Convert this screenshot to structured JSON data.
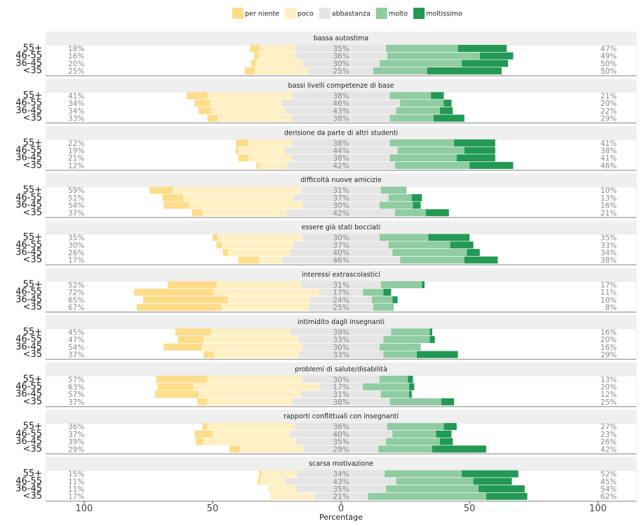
{
  "chart_data": {
    "type": "bar",
    "xlabel": "Percentage",
    "xlim": [
      -115,
      115
    ],
    "xticks": [
      {
        "value": -100,
        "label": "100"
      },
      {
        "value": -50,
        "label": "50"
      },
      0,
      50,
      100
    ],
    "legend": [
      {
        "name": "per niente",
        "color": "#fedd8a"
      },
      {
        "name": "poco",
        "color": "#fff0c3"
      },
      {
        "name": "abbastanza",
        "color": "#e5e5e5"
      },
      {
        "name": "molto",
        "color": "#8fcca1"
      },
      {
        "name": "moltissimo",
        "color": "#229954"
      }
    ],
    "panels": [
      {
        "title": "bassa autostima",
        "categories": [
          "55+",
          "46-55",
          "36-45",
          "<35"
        ],
        "values": [
          [
            4,
            2,
            2,
            4
          ],
          [
            14,
            14,
            18,
            21
          ],
          [
            35,
            36,
            30,
            25
          ],
          [
            28,
            36,
            32,
            21
          ],
          [
            19,
            13,
            18,
            29
          ]
        ],
        "left_labels": [
          "18%",
          "16%",
          "20%",
          "25%"
        ],
        "mid_labels": [
          "35%",
          "36%",
          "30%",
          "25%"
        ],
        "right_labels": [
          "47%",
          "49%",
          "50%",
          "50%"
        ]
      },
      {
        "title": "bassi livelli competenze di base",
        "categories": [
          "55+",
          "46-55",
          "36-45",
          "<35"
        ],
        "values": [
          [
            8,
            6,
            5,
            4
          ],
          [
            33,
            28,
            29,
            29
          ],
          [
            38,
            46,
            43,
            38
          ],
          [
            16,
            17,
            17,
            17
          ],
          [
            5,
            3,
            5,
            12
          ]
        ],
        "left_labels": [
          "41%",
          "34%",
          "34%",
          "33%"
        ],
        "mid_labels": [
          "38%",
          "46%",
          "43%",
          "38%"
        ],
        "right_labels": [
          "21%",
          "20%",
          "22%",
          "29%"
        ]
      },
      {
        "title": "derisione da parte di altri studenti",
        "categories": [
          "55+",
          "46-55",
          "36-45",
          "<35"
        ],
        "values": [
          [
            5,
            1,
            4,
            1
          ],
          [
            17,
            18,
            17,
            11
          ],
          [
            38,
            44,
            38,
            42
          ],
          [
            25,
            26,
            26,
            29
          ],
          [
            16,
            12,
            15,
            17
          ]
        ],
        "left_labels": [
          "22%",
          "19%",
          "21%",
          "12%"
        ],
        "mid_labels": [
          "38%",
          "44%",
          "38%",
          "42%"
        ],
        "right_labels": [
          "41%",
          "38%",
          "41%",
          "46%"
        ]
      },
      {
        "title": "difficoltà nuove amicizie",
        "categories": [
          "55+",
          "46-55",
          "36-45",
          "<35"
        ],
        "values": [
          [
            9,
            8,
            10,
            4
          ],
          [
            50,
            43,
            44,
            33
          ],
          [
            31,
            37,
            30,
            42
          ],
          [
            10,
            9,
            13,
            12
          ],
          [
            0,
            4,
            3,
            9
          ]
        ],
        "left_labels": [
          "59%",
          "51%",
          "54%",
          "37%"
        ],
        "mid_labels": [
          "31%",
          "37%",
          "30%",
          "42%"
        ],
        "right_labels": [
          "10%",
          "13%",
          "16%",
          "21%"
        ]
      },
      {
        "title": "essere già stati bocciati",
        "categories": [
          "55+",
          "46-55",
          "36-45",
          "<35"
        ],
        "values": [
          [
            2,
            2,
            2,
            8
          ],
          [
            33,
            28,
            24,
            9
          ],
          [
            30,
            37,
            40,
            46
          ],
          [
            19,
            24,
            29,
            25
          ],
          [
            16,
            9,
            5,
            13
          ]
        ],
        "left_labels": [
          "35%",
          "30%",
          "26%",
          "17%"
        ],
        "mid_labels": [
          "30%",
          "37%",
          "40%",
          "46%"
        ],
        "right_labels": [
          "35%",
          "33%",
          "34%",
          "38%"
        ]
      },
      {
        "title": "interessi extrascolastici",
        "categories": [
          "55+",
          "46-55",
          "36-45",
          "<35"
        ],
        "values": [
          [
            19,
            31,
            33,
            33
          ],
          [
            33,
            41,
            32,
            34
          ],
          [
            31,
            17,
            24,
            25
          ],
          [
            16,
            8,
            8,
            8
          ],
          [
            1,
            3,
            2,
            0
          ]
        ],
        "left_labels": [
          "52%",
          "72%",
          "65%",
          "67%"
        ],
        "mid_labels": [
          "31%",
          "17%",
          "24%",
          "25%"
        ],
        "right_labels": [
          "17%",
          "11%",
          "10%",
          "8%"
        ]
      },
      {
        "title": "intimidito dagli insegnanti",
        "categories": [
          "55+",
          "46-55",
          "36-45",
          "<35"
        ],
        "values": [
          [
            14,
            10,
            15,
            4
          ],
          [
            31,
            37,
            39,
            33
          ],
          [
            39,
            33,
            30,
            33
          ],
          [
            15,
            18,
            16,
            13
          ],
          [
            1,
            2,
            0,
            16
          ]
        ],
        "left_labels": [
          "45%",
          "47%",
          "54%",
          "37%"
        ],
        "mid_labels": [
          "39%",
          "33%",
          "30%",
          "33%"
        ],
        "right_labels": [
          "16%",
          "20%",
          "16%",
          "29%"
        ]
      },
      {
        "title": "problemi di salute/disabilità",
        "categories": [
          "55+",
          "46-55",
          "36-45",
          "<35"
        ],
        "values": [
          [
            20,
            14,
            17,
            4
          ],
          [
            37,
            49,
            40,
            33
          ],
          [
            30,
            17,
            31,
            38
          ],
          [
            11,
            18,
            11,
            20
          ],
          [
            2,
            2,
            1,
            5
          ]
        ],
        "left_labels": [
          "57%",
          "63%",
          "57%",
          "37%"
        ],
        "mid_labels": [
          "30%",
          "17%",
          "31%",
          "38%"
        ],
        "right_labels": [
          "13%",
          "20%",
          "12%",
          "25%"
        ]
      },
      {
        "title": "rapporti conflittuali con insegnanti",
        "categories": [
          "55+",
          "46-55",
          "36-45",
          "<35"
        ],
        "values": [
          [
            2,
            7,
            3,
            4
          ],
          [
            34,
            30,
            36,
            25
          ],
          [
            36,
            40,
            35,
            29
          ],
          [
            22,
            17,
            21,
            21
          ],
          [
            5,
            6,
            5,
            21
          ]
        ],
        "left_labels": [
          "36%",
          "37%",
          "39%",
          "29%"
        ],
        "mid_labels": [
          "36%",
          "40%",
          "35%",
          "29%"
        ],
        "right_labels": [
          "27%",
          "23%",
          "26%",
          "42%"
        ]
      },
      {
        "title": "scarsa motivazione",
        "categories": [
          "55+",
          "46-55",
          "36-45",
          "<35"
        ],
        "values": [
          [
            1,
            1,
            0,
            0
          ],
          [
            14,
            10,
            11,
            17
          ],
          [
            34,
            43,
            35,
            21
          ],
          [
            30,
            30,
            36,
            46
          ],
          [
            22,
            15,
            18,
            16
          ]
        ],
        "left_labels": [
          "15%",
          "11%",
          "11%",
          "17%"
        ],
        "mid_labels": [
          "34%",
          "43%",
          "35%",
          "21%"
        ],
        "right_labels": [
          "52%",
          "45%",
          "54%",
          "62%"
        ]
      }
    ]
  }
}
